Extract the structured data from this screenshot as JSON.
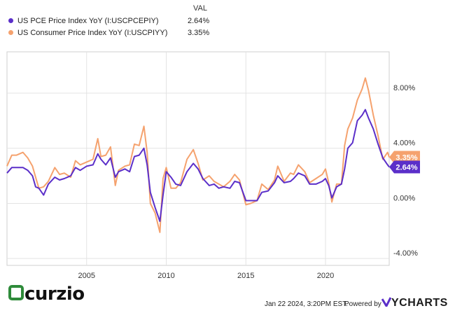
{
  "legend": {
    "header": "VAL",
    "items": [
      {
        "label": "US PCE Price Index YoY (I:USCPCEPIY)",
        "value": "2.64%",
        "color": "#5b2fc9"
      },
      {
        "label": "US Consumer Price Index YoY (I:USCPIYY)",
        "value": "3.35%",
        "color": "#f5a26e"
      }
    ]
  },
  "footer": {
    "brand": "curzio",
    "timestamp": "Jan 22 2024, 3:20PM EST.",
    "powered_by": "Powered by",
    "ycharts": "YCHARTS"
  },
  "chart_data": {
    "type": "line",
    "x_axis": {
      "ticks": [
        "2005",
        "2010",
        "2015",
        "2020"
      ],
      "range": [
        2000.0,
        2024.0
      ]
    },
    "y_axis": {
      "ticks": [
        "-4.00%",
        "0.00%",
        "4.00%",
        "8.00%"
      ],
      "range": [
        -4.5,
        11.0
      ],
      "position": "right"
    },
    "grid": true,
    "end_labels": [
      "3.35%",
      "2.64%"
    ],
    "series": [
      {
        "name": "US PCE Price Index YoY (I:USCPCEPIY)",
        "color": "#5b2fc9",
        "points": [
          [
            2000.0,
            2.2
          ],
          [
            2000.3,
            2.6
          ],
          [
            2000.6,
            2.6
          ],
          [
            2001.0,
            2.6
          ],
          [
            2001.3,
            2.4
          ],
          [
            2001.6,
            2.0
          ],
          [
            2001.8,
            1.2
          ],
          [
            2002.0,
            1.1
          ],
          [
            2002.3,
            0.6
          ],
          [
            2002.6,
            1.4
          ],
          [
            2003.0,
            1.9
          ],
          [
            2003.3,
            1.7
          ],
          [
            2003.6,
            1.8
          ],
          [
            2004.0,
            2.0
          ],
          [
            2004.3,
            2.6
          ],
          [
            2004.6,
            2.4
          ],
          [
            2005.0,
            2.7
          ],
          [
            2005.4,
            2.8
          ],
          [
            2005.7,
            3.6
          ],
          [
            2005.9,
            3.2
          ],
          [
            2006.2,
            2.8
          ],
          [
            2006.5,
            3.3
          ],
          [
            2006.8,
            1.9
          ],
          [
            2007.0,
            2.3
          ],
          [
            2007.4,
            2.5
          ],
          [
            2007.7,
            2.3
          ],
          [
            2008.0,
            3.4
          ],
          [
            2008.3,
            3.5
          ],
          [
            2008.6,
            4.0
          ],
          [
            2008.8,
            2.8
          ],
          [
            2009.0,
            0.8
          ],
          [
            2009.3,
            -0.3
          ],
          [
            2009.6,
            -1.3
          ],
          [
            2009.8,
            0.6
          ],
          [
            2010.0,
            2.3
          ],
          [
            2010.3,
            1.9
          ],
          [
            2010.6,
            1.4
          ],
          [
            2010.9,
            1.3
          ],
          [
            2011.3,
            2.3
          ],
          [
            2011.7,
            2.9
          ],
          [
            2012.0,
            2.5
          ],
          [
            2012.3,
            1.8
          ],
          [
            2012.7,
            1.3
          ],
          [
            2013.0,
            1.4
          ],
          [
            2013.3,
            1.1
          ],
          [
            2013.6,
            1.2
          ],
          [
            2014.0,
            1.1
          ],
          [
            2014.3,
            1.6
          ],
          [
            2014.6,
            1.5
          ],
          [
            2015.0,
            0.2
          ],
          [
            2015.3,
            0.2
          ],
          [
            2015.7,
            0.2
          ],
          [
            2016.0,
            0.8
          ],
          [
            2016.4,
            0.9
          ],
          [
            2016.8,
            1.5
          ],
          [
            2017.0,
            2.0
          ],
          [
            2017.4,
            1.5
          ],
          [
            2017.8,
            1.6
          ],
          [
            2018.0,
            1.8
          ],
          [
            2018.3,
            2.2
          ],
          [
            2018.7,
            2.0
          ],
          [
            2019.0,
            1.4
          ],
          [
            2019.4,
            1.4
          ],
          [
            2019.8,
            1.6
          ],
          [
            2020.0,
            1.8
          ],
          [
            2020.2,
            1.3
          ],
          [
            2020.4,
            0.4
          ],
          [
            2020.7,
            1.2
          ],
          [
            2021.0,
            1.4
          ],
          [
            2021.2,
            2.5
          ],
          [
            2021.4,
            4.0
          ],
          [
            2021.7,
            4.4
          ],
          [
            2022.0,
            6.0
          ],
          [
            2022.3,
            6.4
          ],
          [
            2022.5,
            6.8
          ],
          [
            2022.7,
            6.2
          ],
          [
            2023.0,
            5.4
          ],
          [
            2023.3,
            4.3
          ],
          [
            2023.6,
            3.3
          ],
          [
            2023.9,
            2.8
          ],
          [
            2024.0,
            2.64
          ]
        ]
      },
      {
        "name": "US Consumer Price Index YoY (I:USCPIYY)",
        "color": "#f5a26e",
        "points": [
          [
            2000.0,
            2.7
          ],
          [
            2000.3,
            3.5
          ],
          [
            2000.6,
            3.5
          ],
          [
            2001.0,
            3.7
          ],
          [
            2001.3,
            3.3
          ],
          [
            2001.6,
            2.7
          ],
          [
            2001.8,
            1.9
          ],
          [
            2002.0,
            1.1
          ],
          [
            2002.3,
            1.2
          ],
          [
            2002.6,
            1.6
          ],
          [
            2003.0,
            2.6
          ],
          [
            2003.3,
            2.1
          ],
          [
            2003.6,
            2.2
          ],
          [
            2004.0,
            1.9
          ],
          [
            2004.3,
            3.1
          ],
          [
            2004.6,
            2.8
          ],
          [
            2005.0,
            3.0
          ],
          [
            2005.4,
            3.2
          ],
          [
            2005.7,
            4.7
          ],
          [
            2005.9,
            3.4
          ],
          [
            2006.2,
            3.5
          ],
          [
            2006.5,
            4.1
          ],
          [
            2006.8,
            1.3
          ],
          [
            2007.0,
            2.4
          ],
          [
            2007.4,
            2.7
          ],
          [
            2007.7,
            2.8
          ],
          [
            2008.0,
            4.3
          ],
          [
            2008.3,
            4.2
          ],
          [
            2008.6,
            5.6
          ],
          [
            2008.8,
            3.7
          ],
          [
            2009.0,
            0.0
          ],
          [
            2009.3,
            -0.7
          ],
          [
            2009.6,
            -2.1
          ],
          [
            2009.8,
            1.8
          ],
          [
            2010.0,
            2.6
          ],
          [
            2010.3,
            1.1
          ],
          [
            2010.6,
            1.1
          ],
          [
            2010.9,
            1.5
          ],
          [
            2011.3,
            3.2
          ],
          [
            2011.7,
            3.9
          ],
          [
            2012.0,
            2.9
          ],
          [
            2012.3,
            1.7
          ],
          [
            2012.7,
            2.0
          ],
          [
            2013.0,
            1.6
          ],
          [
            2013.3,
            1.4
          ],
          [
            2013.6,
            1.2
          ],
          [
            2014.0,
            1.6
          ],
          [
            2014.3,
            2.1
          ],
          [
            2014.6,
            1.7
          ],
          [
            2015.0,
            -0.1
          ],
          [
            2015.3,
            0.0
          ],
          [
            2015.7,
            0.2
          ],
          [
            2016.0,
            1.4
          ],
          [
            2016.4,
            1.0
          ],
          [
            2016.8,
            1.7
          ],
          [
            2017.0,
            2.7
          ],
          [
            2017.4,
            1.6
          ],
          [
            2017.8,
            2.2
          ],
          [
            2018.0,
            2.1
          ],
          [
            2018.3,
            2.8
          ],
          [
            2018.7,
            2.3
          ],
          [
            2019.0,
            1.5
          ],
          [
            2019.4,
            1.8
          ],
          [
            2019.8,
            2.1
          ],
          [
            2020.0,
            2.5
          ],
          [
            2020.2,
            1.5
          ],
          [
            2020.4,
            0.1
          ],
          [
            2020.7,
            1.4
          ],
          [
            2021.0,
            1.4
          ],
          [
            2021.2,
            4.2
          ],
          [
            2021.4,
            5.4
          ],
          [
            2021.7,
            6.2
          ],
          [
            2022.0,
            7.5
          ],
          [
            2022.3,
            8.3
          ],
          [
            2022.5,
            9.1
          ],
          [
            2022.7,
            8.2
          ],
          [
            2023.0,
            6.4
          ],
          [
            2023.3,
            4.9
          ],
          [
            2023.6,
            3.2
          ],
          [
            2023.9,
            3.7
          ],
          [
            2024.0,
            3.35
          ]
        ]
      }
    ]
  }
}
